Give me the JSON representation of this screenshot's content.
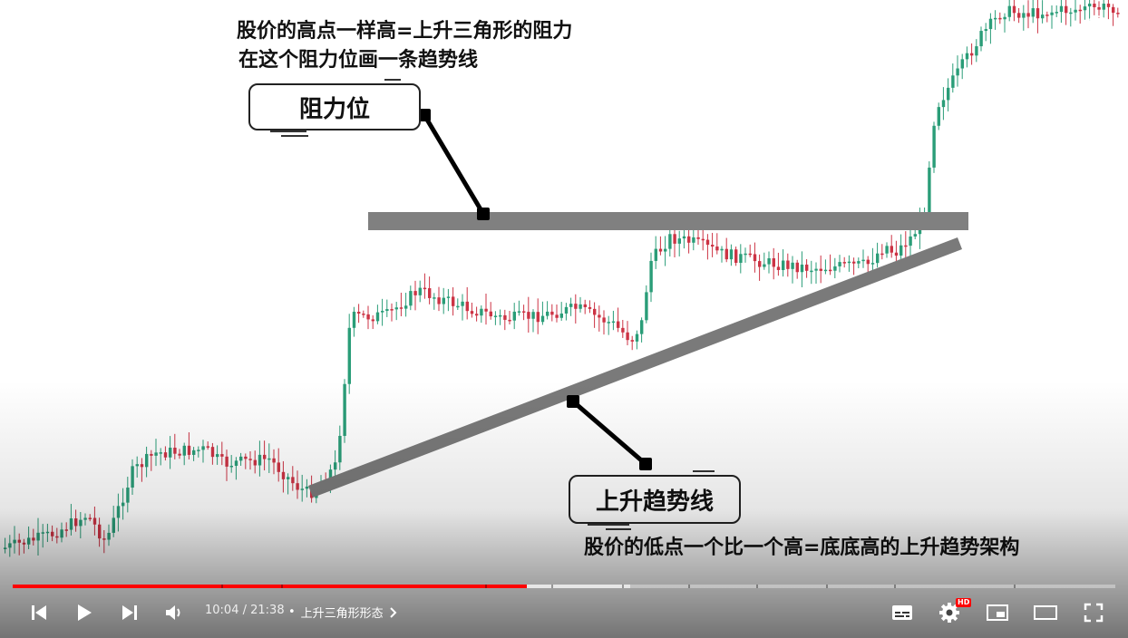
{
  "annotations": {
    "top_line1": "股价的高点一样高=上升三角形的阻力",
    "top_line2": "在这个阻力位画一条趋势线",
    "resistance_label": "阻力位",
    "trendline_label": "上升趋势线",
    "bottom_caption": "股价的低点一个比一个高=底底高的上升趋势架构"
  },
  "player": {
    "current_time": "10:04",
    "duration": "21:38",
    "time_separator": " / ",
    "chapter_bullet": "•",
    "chapter_title": "上升三角形形态",
    "progress_played": 0.466,
    "progress_buffered": 0.56,
    "hd_badge": "HD",
    "info_icon": "i",
    "icons": {
      "prev": "skip-previous-icon",
      "play": "play-icon",
      "next": "skip-next-icon",
      "volume": "volume-icon",
      "chapter": "chevron-right-icon",
      "subtitles": "subtitles-icon",
      "settings": "gear-icon",
      "miniplayer": "miniplayer-icon",
      "theater": "theater-mode-icon",
      "fullscreen": "fullscreen-icon"
    }
  },
  "colors": {
    "bull": "#2a9d78",
    "bear": "#cc3344",
    "resistance_band": "#808080",
    "trendline_band": "#7a7a7a",
    "progress_red": "#ff0000"
  }
}
